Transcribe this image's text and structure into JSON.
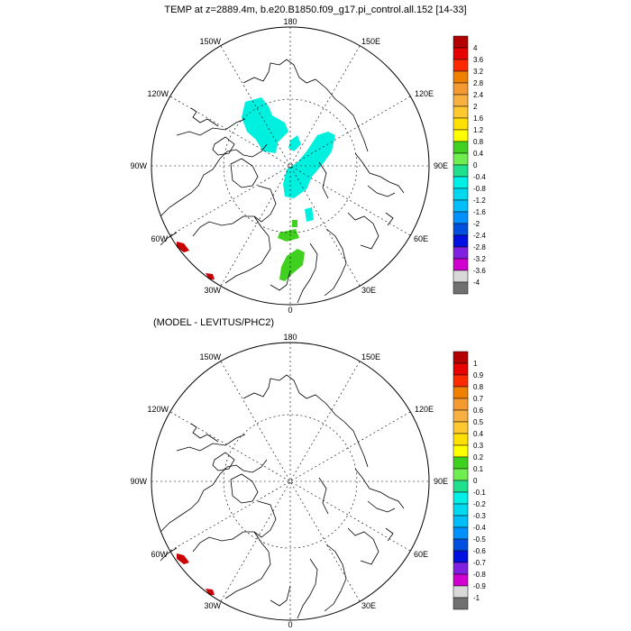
{
  "panels": [
    {
      "title": "TEMP at z=2889.4m, b.e20.B1850.f09_g17.pi_control.all.152 [14-33]",
      "lon_labels": [
        "180",
        "150E",
        "120E",
        "90E",
        "60E",
        "30E",
        "0",
        "30W",
        "60W",
        "90W",
        "120W",
        "150W"
      ],
      "colorbar_labels": [
        "4",
        "3.6",
        "3.2",
        "2.8",
        "2.4",
        "2",
        "1.6",
        "1.2",
        "0.8",
        "0.4",
        "0",
        "-0.4",
        "-0.8",
        "-1.2",
        "-1.6",
        "-2",
        "-2.4",
        "-2.8",
        "-3.2",
        "-3.6",
        "-4"
      ]
    },
    {
      "title": "(MODEL - LEVITUS/PHC2)",
      "lon_labels": [
        "180",
        "150E",
        "120E",
        "90E",
        "60E",
        "30E",
        "0",
        "30W",
        "60W",
        "90W",
        "120W",
        "150W"
      ],
      "colorbar_labels": [
        "1",
        "0.9",
        "0.8",
        "0.7",
        "0.6",
        "0.5",
        "0.4",
        "0.3",
        "0.2",
        "0.1",
        "0",
        "-0.1",
        "-0.2",
        "-0.3",
        "-0.4",
        "-0.5",
        "-0.6",
        "-0.7",
        "-0.8",
        "-0.9",
        "-1"
      ]
    }
  ],
  "colorbar_colors": [
    "#b30000",
    "#e60000",
    "#ff2a00",
    "#f08000",
    "#f59a30",
    "#f8b040",
    "#ffc830",
    "#ffe000",
    "#ffff00",
    "#40d020",
    "#70ee50",
    "#20e090",
    "#00f0e8",
    "#00d8f0",
    "#00bff8",
    "#0090ff",
    "#0050e0",
    "#0010e0",
    "#8020e0",
    "#d000d0",
    "#d8d8d8",
    "#707070"
  ]
}
